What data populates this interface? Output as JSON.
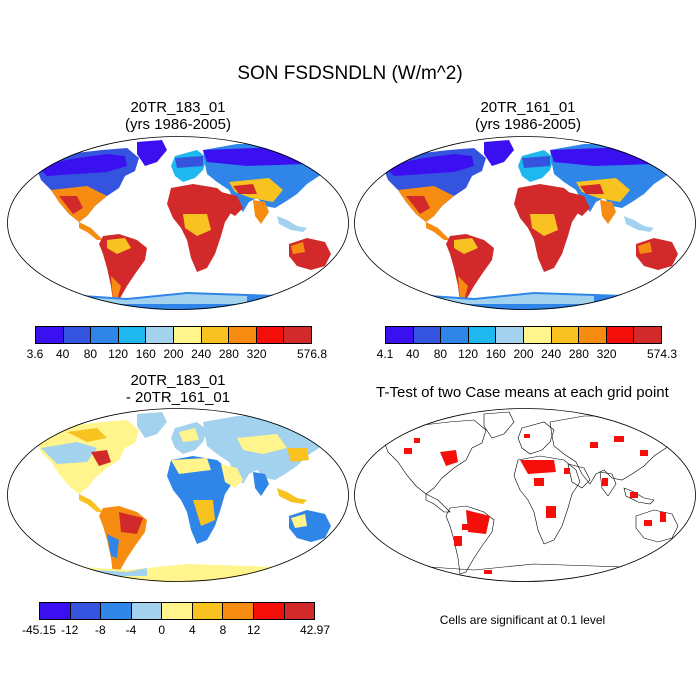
{
  "title": "SON FSDSNDLN (W/m^2)",
  "panels": [
    {
      "id": "case1",
      "title_line1": "20TR_183_01",
      "title_line2": "(yrs 1986-2005)",
      "colorbar": {
        "labels": [
          "3.6",
          "40",
          "80",
          "120",
          "160",
          "200",
          "240",
          "280",
          "320",
          "576.8"
        ],
        "colors": [
          "#3b10f0",
          "#3454e0",
          "#2f86e8",
          "#1fb8ee",
          "#a3d2ee",
          "#fff58c",
          "#f8c220",
          "#f78c12",
          "#f50f0a",
          "#d22a2a"
        ]
      }
    },
    {
      "id": "case2",
      "title_line1": "20TR_161_01",
      "title_line2": "(yrs 1986-2005)",
      "colorbar": {
        "labels": [
          "4.1",
          "40",
          "80",
          "120",
          "160",
          "200",
          "240",
          "280",
          "320",
          "574.3"
        ],
        "colors": [
          "#3b10f0",
          "#3454e0",
          "#2f86e8",
          "#1fb8ee",
          "#a3d2ee",
          "#fff58c",
          "#f8c220",
          "#f78c12",
          "#f50f0a",
          "#d22a2a"
        ]
      }
    },
    {
      "id": "diff",
      "title_line1": "20TR_183_01",
      "title_line2": "- 20TR_161_01",
      "colorbar": {
        "labels": [
          "-45.15",
          "-12",
          "-8",
          "-4",
          "0",
          "4",
          "8",
          "12",
          "42.97"
        ],
        "colors": [
          "#3b10f0",
          "#3454e0",
          "#2f86e8",
          "#a3d2ee",
          "#fff58c",
          "#f8c220",
          "#f78c12",
          "#f50f0a",
          "#d22a2a"
        ]
      }
    },
    {
      "id": "ttest",
      "title_line1": "T-Test of two Case means at each grid point",
      "note": "Cells are significant at 0.1 level"
    }
  ]
}
